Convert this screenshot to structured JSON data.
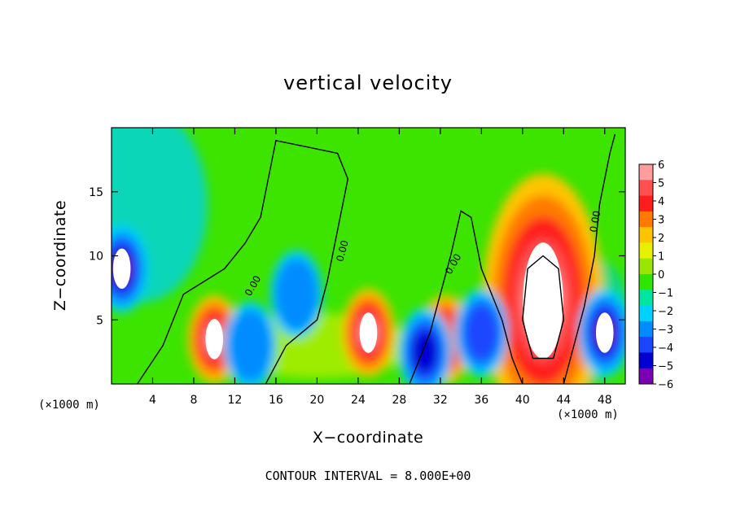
{
  "chart_data": {
    "type": "heatmap",
    "title": "vertical velocity",
    "xlabel": "X−coordinate",
    "ylabel": "Z−coordinate",
    "x_unit_label": "(×1000 m)",
    "footer": "CONTOUR INTERVAL = 8.000E+00",
    "xlim": [
      0,
      50
    ],
    "ylim": [
      0,
      20
    ],
    "x_ticks": [
      4,
      8,
      12,
      16,
      20,
      24,
      28,
      32,
      36,
      40,
      44,
      48
    ],
    "y_ticks": [
      5,
      10,
      15
    ],
    "colorbar": {
      "ticks": [
        6,
        5,
        4,
        3,
        2,
        1,
        0,
        -1,
        -2,
        -3,
        -4,
        -5,
        -6
      ],
      "tick_labels": [
        "6",
        "5",
        "4",
        "3",
        "2",
        "1",
        "0",
        "−1",
        "−2",
        "−3",
        "−4",
        "−5",
        "−6"
      ],
      "colors": [
        "#ff9c9c",
        "#ff5050",
        "#ff1c1c",
        "#ff7a00",
        "#ffc400",
        "#e6f000",
        "#9be600",
        "#2fe600",
        "#00e6a0",
        "#00d2ff",
        "#008cff",
        "#1a46ff",
        "#0000d2",
        "#7a00b4"
      ]
    },
    "contour_labels": [
      "0.00",
      "0.00",
      "0.00",
      "0.00"
    ],
    "features": [
      {
        "kind": "updraft",
        "x": 10,
        "z": 3.5,
        "value": 6
      },
      {
        "kind": "updraft",
        "x": 25,
        "z": 4,
        "value": 6
      },
      {
        "kind": "updraft",
        "x": 32.5,
        "z": 3.5,
        "value": 5
      },
      {
        "kind": "updraft",
        "x": 42,
        "z": 6.5,
        "value": 6
      },
      {
        "kind": "downdraft",
        "x": 1,
        "z": 9,
        "value": -6
      },
      {
        "kind": "downdraft",
        "x": 13.5,
        "z": 3,
        "value": -3
      },
      {
        "kind": "downdraft",
        "x": 18,
        "z": 7,
        "value": -3
      },
      {
        "kind": "downdraft",
        "x": 30.5,
        "z": 2.5,
        "value": -5
      },
      {
        "kind": "downdraft",
        "x": 36,
        "z": 4,
        "value": -4
      },
      {
        "kind": "downdraft",
        "x": 48,
        "z": 4,
        "value": -6
      }
    ]
  }
}
